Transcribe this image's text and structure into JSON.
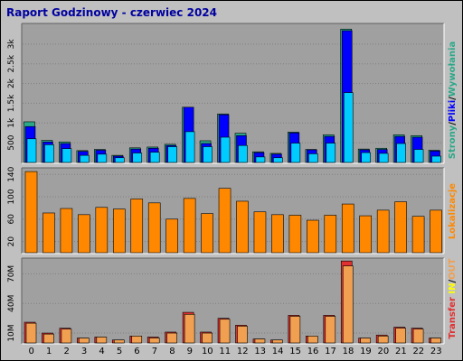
{
  "title": "Raport Godzinowy -  czerwiec 2024",
  "colors": {
    "background": "#c0c0c0",
    "plot_bg": "#a0a0a0",
    "pages": "#2aa888",
    "files": "#0000ff",
    "hits": "#00ccff",
    "sites": "#ff8800",
    "kbytes_out": "#e03030",
    "kbytes_in": "#f0a050"
  },
  "side_labels": {
    "top": [
      {
        "text": "Strony",
        "color": "#2aa888"
      },
      {
        "text": "/",
        "color": "#000000"
      },
      {
        "text": "Pliki",
        "color": "#0000ff"
      },
      {
        "text": "/",
        "color": "#000000"
      },
      {
        "text": "Wywołania",
        "color": "#2aa888"
      }
    ],
    "middle": [
      {
        "text": "Lokalizacje",
        "color": "#ff8800"
      }
    ],
    "bottom": [
      {
        "text": "Transfer",
        "color": "#e03030"
      },
      {
        "text": " IN",
        "color": "#ffff00"
      },
      {
        "text": "/",
        "color": "#000000"
      },
      {
        "text": "OUT",
        "color": "#f0a050"
      }
    ]
  },
  "chart_data": [
    {
      "type": "bar",
      "categories": [
        "0",
        "1",
        "2",
        "3",
        "4",
        "5",
        "6",
        "7",
        "8",
        "9",
        "10",
        "11",
        "12",
        "13",
        "14",
        "15",
        "16",
        "17",
        "18",
        "19",
        "20",
        "21",
        "22",
        "23"
      ],
      "series": [
        {
          "name": "Strony",
          "values": [
            1030,
            560,
            520,
            300,
            330,
            180,
            370,
            390,
            460,
            1400,
            550,
            1230,
            740,
            270,
            230,
            770,
            330,
            700,
            3380,
            340,
            360,
            700,
            680,
            310
          ]
        },
        {
          "name": "Pliki",
          "values": [
            910,
            520,
            480,
            280,
            310,
            160,
            340,
            360,
            430,
            1400,
            480,
            1210,
            680,
            250,
            210,
            750,
            320,
            660,
            3340,
            320,
            330,
            660,
            640,
            290
          ]
        },
        {
          "name": "Wywołania",
          "values": [
            600,
            450,
            350,
            180,
            210,
            120,
            240,
            260,
            400,
            780,
            400,
            640,
            430,
            140,
            120,
            490,
            220,
            490,
            1770,
            250,
            230,
            480,
            330,
            160
          ]
        }
      ],
      "yticks": [
        500,
        1000,
        1500,
        2000,
        2500,
        3000
      ],
      "yticklabels": [
        "500",
        "1k",
        "1.5k",
        "2k",
        "2.5k",
        "3k"
      ],
      "ylim": [
        0,
        3500
      ]
    },
    {
      "type": "bar",
      "categories": [
        "0",
        "1",
        "2",
        "3",
        "4",
        "5",
        "6",
        "7",
        "8",
        "9",
        "10",
        "11",
        "12",
        "13",
        "14",
        "15",
        "16",
        "17",
        "18",
        "19",
        "20",
        "21",
        "22",
        "23"
      ],
      "series": [
        {
          "name": "Lokalizacje",
          "values": [
            145,
            71,
            79,
            68,
            81,
            78,
            96,
            89,
            60,
            97,
            70,
            115,
            92,
            73,
            68,
            67,
            58,
            67,
            87,
            66,
            76,
            91,
            65,
            76
          ]
        }
      ],
      "yticks": [
        20,
        60,
        100,
        140
      ],
      "yticklabels": [
        "20",
        "60",
        "100",
        "140"
      ],
      "ylim": [
        0,
        150
      ]
    },
    {
      "type": "bar",
      "categories": [
        "0",
        "1",
        "2",
        "3",
        "4",
        "5",
        "6",
        "7",
        "8",
        "9",
        "10",
        "11",
        "12",
        "13",
        "14",
        "15",
        "16",
        "17",
        "18",
        "19",
        "20",
        "21",
        "22",
        "23"
      ],
      "series": [
        {
          "name": "OUT",
          "values": [
            21,
            10,
            15,
            5,
            6,
            3,
            7,
            6,
            11,
            31,
            11,
            25,
            18,
            4,
            3,
            28,
            7,
            28,
            83,
            5,
            8,
            16,
            15,
            5
          ]
        },
        {
          "name": "IN",
          "values": [
            20,
            9,
            14,
            5,
            6,
            3,
            7,
            5,
            10,
            29,
            10,
            24,
            17,
            4,
            3,
            27,
            7,
            27,
            78,
            5,
            7,
            15,
            14,
            5
          ]
        }
      ],
      "yticks": [
        10,
        40,
        70
      ],
      "yticklabels": [
        "10M",
        "40M",
        "70M"
      ],
      "ylim": [
        0,
        85
      ]
    }
  ]
}
